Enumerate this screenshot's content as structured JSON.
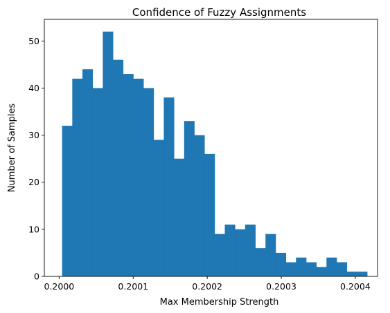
{
  "chart_data": {
    "type": "bar",
    "title": "Confidence of Fuzzy Assignments",
    "xlabel": "Max Membership Strength",
    "ylabel": "Number of Samples",
    "bar_color": "#1f77b4",
    "grid": false,
    "xlim": [
      0.19998,
      0.20043
    ],
    "ylim": [
      0,
      54.6
    ],
    "xticks": [
      0.2,
      0.2001,
      0.2002,
      0.2003,
      0.2004
    ],
    "xtick_labels": [
      "0.2000",
      "0.2001",
      "0.2002",
      "0.2003",
      "0.2004"
    ],
    "yticks": [
      0,
      10,
      20,
      30,
      40,
      50
    ],
    "ytick_labels": [
      "0",
      "10",
      "20",
      "30",
      "40",
      "50"
    ],
    "bin_start": 0.200004,
    "bin_end": 0.200416,
    "values": [
      32,
      42,
      44,
      40,
      52,
      46,
      43,
      42,
      40,
      29,
      38,
      25,
      33,
      30,
      26,
      9,
      11,
      10,
      11,
      6,
      9,
      5,
      3,
      4,
      3,
      2,
      4,
      3,
      1,
      1
    ]
  }
}
